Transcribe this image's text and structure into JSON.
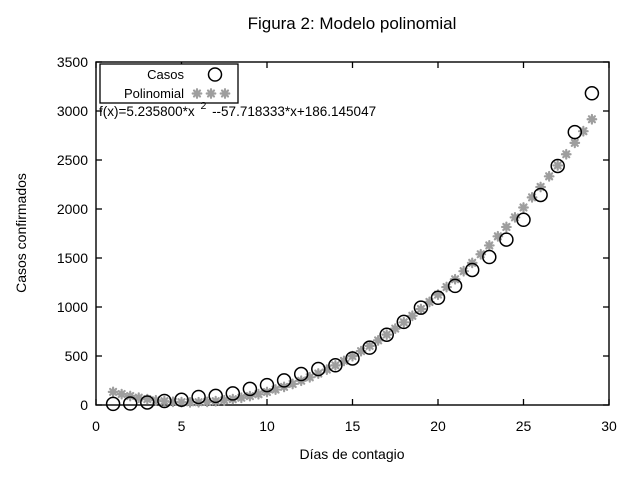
{
  "figure": {
    "title": "Figura 2: Modelo polinomial",
    "equation": {
      "prefix": "f(x)=5.235800*x",
      "sup": "2",
      "suffix": "--57.718333*x+186.145047"
    }
  },
  "colors": {
    "background": "#ffffff",
    "axis": "#000000",
    "casos_marker": "#000000",
    "polinomial_marker": "#9e9e9e"
  },
  "chart_data": {
    "type": "scatter",
    "title": "Figura 2: Modelo polinomial",
    "xlabel": "Días de contagio",
    "ylabel": "Casos confirmados",
    "xlim": [
      0,
      30
    ],
    "ylim": [
      0,
      3500
    ],
    "xticks": [
      0,
      5,
      10,
      15,
      20,
      25,
      30
    ],
    "yticks": [
      0,
      500,
      1000,
      1500,
      2000,
      2500,
      3000,
      3500
    ],
    "grid": false,
    "legend_position": "top-left",
    "annotation": "f(x)=5.235800*x^2 --57.718333*x+186.145047",
    "series": [
      {
        "name": "Casos",
        "marker": "circle",
        "color": "#000000",
        "x": [
          1,
          2,
          3,
          4,
          5,
          6,
          7,
          8,
          9,
          10,
          11,
          12,
          13,
          14,
          15,
          16,
          17,
          18,
          19,
          20,
          21,
          22,
          23,
          24,
          25,
          26,
          27,
          28,
          29
        ],
        "y": [
          11,
          15,
          26,
          41,
          53,
          82,
          93,
          118,
          164,
          203,
          251,
          316,
          367,
          405,
          475,
          585,
          717,
          848,
          993,
          1094,
          1215,
          1378,
          1510,
          1688,
          1890,
          2143,
          2439,
          2785,
          3181
        ]
      },
      {
        "name": "Polinomial",
        "marker": "asterisk",
        "color": "#9e9e9e",
        "fit": {
          "a": 5.2358,
          "b": -57.718333,
          "c": 186.145047
        },
        "x_start": 1,
        "x_end": 29,
        "x_step": 0.5
      }
    ]
  }
}
